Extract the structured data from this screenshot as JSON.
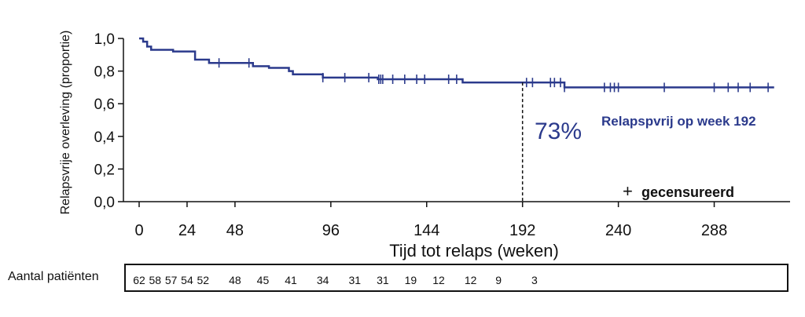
{
  "chart_data": {
    "type": "line",
    "xlabel": "Tijd tot relaps (weken)",
    "ylabel": "Relapsvrije overleving (proportie)",
    "xlim": [
      0,
      330
    ],
    "ylim": [
      0,
      1.0
    ],
    "x_ticks": [
      0,
      24,
      48,
      96,
      144,
      192,
      240,
      288
    ],
    "x_tick_labels": [
      "0",
      "24",
      "48",
      "96",
      "144",
      "192",
      "240",
      "288"
    ],
    "y_ticks": [
      0,
      0.2,
      0.4,
      0.6,
      0.8,
      1.0
    ],
    "y_tick_labels": [
      "0,0",
      "0,2",
      "0,4",
      "0,6",
      "0,8",
      "1,0"
    ],
    "series": [
      {
        "color": "#2b3a8c",
        "steps": [
          [
            0,
            1.0
          ],
          [
            2,
            0.98
          ],
          [
            4,
            0.95
          ],
          [
            6,
            0.93
          ],
          [
            17,
            0.92
          ],
          [
            28,
            0.87
          ],
          [
            35,
            0.85
          ],
          [
            57,
            0.83
          ],
          [
            65,
            0.82
          ],
          [
            75,
            0.8
          ],
          [
            77,
            0.78
          ],
          [
            92,
            0.76
          ],
          [
            119,
            0.76
          ],
          [
            119.5,
            0.75
          ],
          [
            162,
            0.73
          ],
          [
            213,
            0.7
          ],
          [
            318,
            0.7
          ]
        ],
        "censor_x": [
          40,
          55,
          92,
          103,
          115,
          120,
          121,
          122,
          127,
          133,
          139,
          143,
          155,
          159,
          194,
          197,
          206,
          208,
          211,
          213,
          233,
          236,
          238,
          240,
          263,
          288,
          295,
          300,
          306,
          315
        ]
      }
    ],
    "reference": {
      "x": 192,
      "y": 0.73,
      "percent_label": "73%",
      "label": "Relapspvrij op week 192"
    },
    "legend": {
      "symbol": "+",
      "label": "gecensureerd"
    },
    "risk_table": {
      "title": "Aantal patiënten",
      "times": [
        0,
        8,
        16,
        24,
        32,
        48,
        62,
        76,
        92,
        108,
        122,
        136,
        150,
        166,
        180,
        198
      ],
      "values": [
        "62",
        "58",
        "57",
        "54",
        "52",
        "48",
        "45",
        "41",
        "34",
        "31",
        "31",
        "19",
        "12",
        "12",
        "9",
        "3"
      ]
    }
  }
}
